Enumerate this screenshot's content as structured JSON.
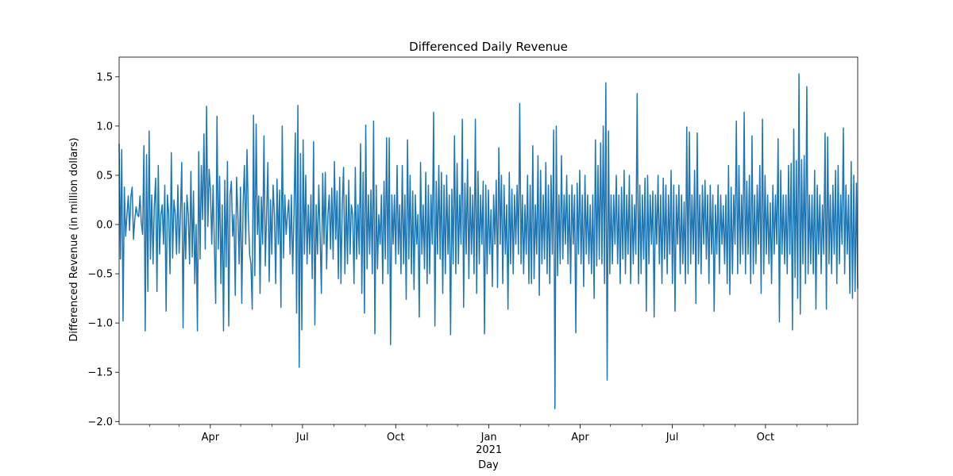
{
  "chart_data": {
    "type": "line",
    "title": "Differenced Daily Revenue",
    "xlabel": "Day",
    "ylabel": "Differenced Revenue (in million dollars)",
    "x_range": [
      "2020-01-02",
      "2021-12-31"
    ],
    "ylim": [
      -2.03,
      1.7
    ],
    "y_ticks": [
      -2.0,
      -1.5,
      -1.0,
      -0.5,
      0.0,
      0.5,
      1.0,
      1.5
    ],
    "y_tick_labels": [
      "−2.0",
      "−1.5",
      "−1.0",
      "−0.5",
      "0.0",
      "0.5",
      "1.0",
      "1.5"
    ],
    "x_major_ticks": [
      {
        "date": "2020-04-01",
        "label": "Apr",
        "sublabel": ""
      },
      {
        "date": "2020-07-01",
        "label": "Jul",
        "sublabel": ""
      },
      {
        "date": "2020-10-01",
        "label": "Oct",
        "sublabel": ""
      },
      {
        "date": "2021-01-01",
        "label": "Jan",
        "sublabel": "2021"
      },
      {
        "date": "2021-04-01",
        "label": "Apr",
        "sublabel": ""
      },
      {
        "date": "2021-07-01",
        "label": "Jul",
        "sublabel": ""
      },
      {
        "date": "2021-10-01",
        "label": "Oct",
        "sublabel": ""
      }
    ],
    "x_minor_ticks": [
      "2020-02-01",
      "2020-03-01",
      "2020-05-01",
      "2020-06-01",
      "2020-08-01",
      "2020-09-01",
      "2020-11-01",
      "2020-12-01",
      "2021-02-01",
      "2021-03-01",
      "2021-05-01",
      "2021-06-01",
      "2021-08-01",
      "2021-09-01",
      "2021-11-01",
      "2021-12-01"
    ],
    "grid": false,
    "series": [
      {
        "color": "#1f77b4",
        "start_date": "2020-01-02",
        "end_date": "2021-12-31",
        "values": [
          0.82,
          -0.35,
          0.76,
          -0.98,
          0.38,
          -0.12,
          0.1,
          0.29,
          -0.06,
          0.28,
          0.38,
          -0.15,
          0.05,
          0.18,
          0.1,
          0.08,
          0.29,
          0.02,
          -0.1,
          0.8,
          -1.08,
          0.71,
          -0.68,
          0.95,
          -0.35,
          0.3,
          -0.4,
          0.2,
          0.47,
          -0.68,
          0.6,
          -0.3,
          0.1,
          0.2,
          -0.2,
          0.4,
          -0.88,
          0.3,
          0.1,
          -0.5,
          0.73,
          -0.34,
          0.25,
          0.1,
          -0.3,
          0.4,
          -0.29,
          0.12,
          0.63,
          -1.05,
          0.22,
          -0.35,
          0.3,
          0.1,
          -0.4,
          0.54,
          -0.33,
          0.34,
          -0.6,
          -0.0,
          -1.08,
          0.74,
          -0.35,
          0.6,
          0.05,
          0.92,
          -0.25,
          1.2,
          -0.02,
          0.56,
          0.34,
          -0.2,
          0.4,
          -0.22,
          -0.8,
          1.1,
          -0.25,
          0.49,
          -0.6,
          0.2,
          -1.08,
          0.45,
          -0.43,
          0.64,
          -1.03,
          0.3,
          0.44,
          -0.12,
          0.1,
          -0.72,
          0.48,
          0.1,
          -0.4,
          0.38,
          -0.8,
          0.2,
          0.6,
          -0.2,
          0.76,
          0.1,
          -0.3,
          -0.4,
          -0.86,
          1.11,
          -0.52,
          1.02,
          -0.1,
          0.29,
          -0.7,
          0.28,
          -0.2,
          0.9,
          -0.42,
          0.1,
          0.63,
          -0.58,
          0.25,
          -0.3,
          0.4,
          0.1,
          -0.6,
          0.46,
          -0.2,
          0.35,
          -0.84,
          1.0,
          -0.34,
          0.3,
          -0.1,
          0.1,
          0.25,
          -0.3,
          0.3,
          -0.5,
          0.1,
          0.93,
          -0.9,
          1.21,
          -1.45,
          0.72,
          -1.07,
          0.86,
          -0.3,
          0.5,
          -0.4,
          0.2,
          -0.3,
          0.3,
          -0.55,
          0.84,
          -1.02,
          0.2,
          -0.3,
          0.4,
          -0.1,
          -0.7,
          0.52,
          -0.2,
          0.53,
          -0.45,
          0.1,
          0.3,
          -0.25,
          0.37,
          -0.35,
          0.64,
          -0.15,
          0.34,
          -0.55,
          0.48,
          -0.6,
          0.2,
          0.58,
          -0.5,
          0.3,
          -0.4,
          0.45,
          -0.3,
          0.2,
          0.1,
          -0.6,
          0.58,
          -0.35,
          0.2,
          -0.3,
          0.82,
          -0.7,
          0.53,
          -0.9,
          1.01,
          -0.45,
          0.3,
          -0.3,
          0.35,
          -0.5,
          1.05,
          -1.11,
          0.4,
          -0.45,
          0.1,
          -0.2,
          0.3,
          -0.6,
          0.44,
          -0.35,
          0.88,
          -0.5,
          0.88,
          -1.22,
          0.3,
          -0.2,
          0.3,
          -0.4,
          0.6,
          -0.3,
          0.2,
          -0.5,
          0.6,
          -0.4,
          0.3,
          -0.76,
          0.86,
          -0.35,
          0.5,
          -0.5,
          0.34,
          -0.66,
          0.3,
          -0.2,
          0.1,
          -0.94,
          0.63,
          -0.3,
          0.2,
          -0.45,
          0.53,
          -0.6,
          0.4,
          -0.5,
          0.3,
          -0.2,
          1.14,
          -1.03,
          0.44,
          -0.3,
          0.6,
          -0.35,
          0.53,
          -0.7,
          0.4,
          -0.5,
          0.5,
          -0.3,
          0.3,
          -1.12,
          0.36,
          -0.4,
          0.9,
          -0.5,
          0.62,
          -0.4,
          0.3,
          -0.2,
          1.07,
          -0.84,
          0.42,
          -0.3,
          0.66,
          -0.55,
          0.38,
          -0.3,
          0.3,
          -0.5,
          1.07,
          -0.7,
          0.54,
          -0.4,
          0.3,
          -0.2,
          0.44,
          -1.11,
          0.4,
          -0.5,
          0.35,
          -0.3,
          0.15,
          -0.63,
          0.3,
          -0.2,
          0.45,
          -0.64,
          0.78,
          -0.2,
          0.5,
          -0.6,
          0.4,
          -0.3,
          0.2,
          -0.86,
          0.53,
          -0.4,
          0.36,
          -0.5,
          0.3,
          -0.2,
          0.4,
          -0.3,
          1.23,
          -0.4,
          0.3,
          -0.5,
          0.2,
          -0.3,
          0.5,
          -0.6,
          0.4,
          -0.6,
          0.8,
          -0.55,
          0.2,
          -0.3,
          0.7,
          -0.72,
          0.55,
          -0.4,
          0.3,
          -0.35,
          0.63,
          -0.5,
          0.4,
          -0.6,
          0.5,
          -0.3,
          0.96,
          -1.87,
          1.0,
          -0.52,
          0.3,
          -0.4,
          0.7,
          -0.35,
          0.3,
          -0.2,
          0.5,
          -0.4,
          0.3,
          -0.6,
          0.4,
          -0.2,
          0.3,
          -1.1,
          0.42,
          -0.3,
          0.55,
          -0.4,
          0.3,
          -0.63,
          0.5,
          -0.3,
          0.3,
          -0.4,
          0.2,
          -0.5,
          0.3,
          -0.75,
          0.86,
          -0.42,
          0.6,
          -0.35,
          0.83,
          -0.4,
          1.0,
          -0.6,
          1.44,
          -1.58,
          0.95,
          -0.5,
          0.3,
          -0.4,
          0.3,
          -0.2,
          0.5,
          -0.4,
          0.3,
          -0.6,
          0.38,
          -0.35,
          0.55,
          -0.5,
          0.3,
          -0.3,
          0.5,
          -0.6,
          0.3,
          -0.4,
          0.2,
          -0.3,
          1.33,
          -0.6,
          0.4,
          -0.5,
          0.3,
          -0.35,
          0.47,
          -0.88,
          0.5,
          -0.4,
          0.3,
          -0.2,
          0.34,
          -0.94,
          0.3,
          -0.2,
          0.5,
          -0.4,
          0.3,
          -0.6,
          0.47,
          -0.35,
          0.4,
          -0.5,
          0.3,
          -0.3,
          0.55,
          -0.6,
          0.4,
          -0.88,
          0.3,
          -0.2,
          0.4,
          -0.5,
          0.3,
          -0.4,
          0.23,
          -0.6,
          0.99,
          -0.5,
          0.94,
          -0.4,
          0.3,
          -0.3,
          0.55,
          -0.8,
          0.93,
          -0.4,
          0.3,
          -0.5,
          0.4,
          -0.2,
          0.45,
          -0.35,
          0.3,
          -0.6,
          0.4,
          -0.3,
          0.3,
          -0.88,
          0.2,
          -0.3,
          0.4,
          -0.5,
          0.3,
          -0.2,
          0.19,
          -0.4,
          0.3,
          -0.6,
          0.6,
          -0.71,
          0.38,
          -0.5,
          0.3,
          -0.2,
          1.05,
          -0.5,
          0.6,
          -0.4,
          0.3,
          -0.3,
          1.14,
          -0.5,
          0.44,
          -0.3,
          0.5,
          -0.6,
          0.9,
          -0.5,
          0.3,
          -0.4,
          0.4,
          -0.2,
          0.6,
          -0.7,
          1.07,
          -0.5,
          0.5,
          -0.3,
          0.3,
          -0.4,
          0.22,
          -0.6,
          0.4,
          -0.3,
          0.3,
          -0.2,
          0.87,
          -0.99,
          0.55,
          -0.3,
          0.3,
          -0.4,
          0.3,
          -0.5,
          0.6,
          -0.3,
          0.62,
          -1.07,
          0.97,
          -0.54,
          0.65,
          -0.75,
          1.53,
          -0.91,
          0.66,
          -0.4,
          0.7,
          -0.6,
          1.4,
          -0.5,
          0.3,
          -0.4,
          0.3,
          -0.5,
          0.55,
          -0.86,
          0.4,
          -0.3,
          0.3,
          -0.5,
          0.2,
          -0.3,
          0.93,
          -0.86,
          0.89,
          -0.4,
          0.3,
          -0.5,
          0.4,
          -0.3,
          0.55,
          -0.6,
          0.6,
          -0.4,
          0.3,
          -0.2,
          0.98,
          -0.5,
          0.4,
          -0.3,
          0.3,
          -0.7,
          0.64,
          -0.75,
          0.5,
          -0.68,
          0.42,
          -0.65
        ]
      }
    ]
  }
}
